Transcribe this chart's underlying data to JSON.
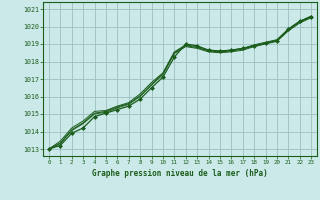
{
  "title": "Graphe pression niveau de la mer (hPa)",
  "background_color": "#cce9e9",
  "grid_color": "#9bbfbf",
  "line_color": "#1a5c1a",
  "text_color": "#1a5c1a",
  "ylim": [
    1012.6,
    1021.4
  ],
  "xlim": [
    -0.5,
    23.5
  ],
  "yticks": [
    1013,
    1014,
    1015,
    1016,
    1017,
    1018,
    1019,
    1020,
    1021
  ],
  "xticks": [
    0,
    1,
    2,
    3,
    4,
    5,
    6,
    7,
    8,
    9,
    10,
    11,
    12,
    13,
    14,
    15,
    16,
    17,
    18,
    19,
    20,
    21,
    22,
    23
  ],
  "series": [
    [
      1013.0,
      1013.2,
      1013.9,
      1014.2,
      1014.85,
      1015.05,
      1015.25,
      1015.45,
      1015.85,
      1016.5,
      1017.1,
      1018.25,
      1019.0,
      1018.9,
      1018.65,
      1018.6,
      1018.65,
      1018.75,
      1018.9,
      1019.05,
      1019.2,
      1019.85,
      1020.3,
      1020.55
    ],
    [
      1013.0,
      1013.3,
      1014.05,
      1014.45,
      1015.0,
      1015.1,
      1015.35,
      1015.55,
      1016.0,
      1016.65,
      1017.25,
      1018.45,
      1018.85,
      1018.75,
      1018.55,
      1018.5,
      1018.55,
      1018.65,
      1018.85,
      1019.0,
      1019.15,
      1019.75,
      1020.2,
      1020.5
    ],
    [
      1013.0,
      1013.35,
      1014.1,
      1014.5,
      1015.05,
      1015.15,
      1015.4,
      1015.6,
      1016.05,
      1016.7,
      1017.3,
      1018.5,
      1018.9,
      1018.8,
      1018.6,
      1018.55,
      1018.6,
      1018.7,
      1018.9,
      1019.05,
      1019.2,
      1019.8,
      1020.25,
      1020.55
    ],
    [
      1013.0,
      1013.45,
      1014.2,
      1014.6,
      1015.15,
      1015.2,
      1015.45,
      1015.65,
      1016.15,
      1016.8,
      1017.35,
      1018.55,
      1018.95,
      1018.85,
      1018.65,
      1018.6,
      1018.65,
      1018.75,
      1018.95,
      1019.1,
      1019.25,
      1019.85,
      1020.3,
      1020.6
    ]
  ],
  "marker_series": 0,
  "marker": "D",
  "marker_size": 2.0
}
